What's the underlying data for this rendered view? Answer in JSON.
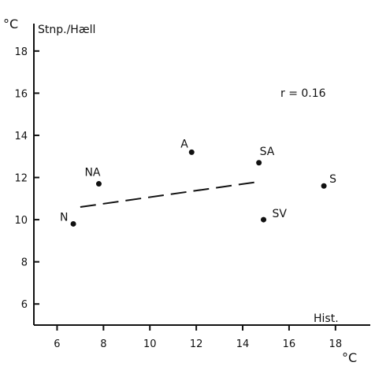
{
  "chart_data": {
    "type": "scatter",
    "ylabel": "Stnp./Hæll",
    "xlabel": "Hist.",
    "y_unit": "°C",
    "x_unit": "°C",
    "xlim": [
      5,
      19.5
    ],
    "ylim": [
      5,
      19.3
    ],
    "x_ticks": [
      6,
      8,
      10,
      12,
      14,
      16,
      18
    ],
    "y_ticks": [
      6,
      8,
      10,
      12,
      14,
      16,
      18
    ],
    "grid": false,
    "annotation": "r = 0.16",
    "points": [
      {
        "label": "N",
        "x": 6.7,
        "y": 9.8
      },
      {
        "label": "NA",
        "x": 7.8,
        "y": 11.7
      },
      {
        "label": "A",
        "x": 11.8,
        "y": 13.2
      },
      {
        "label": "SA",
        "x": 14.7,
        "y": 12.7
      },
      {
        "label": "SV",
        "x": 14.9,
        "y": 10.0
      },
      {
        "label": "S",
        "x": 17.5,
        "y": 11.6
      }
    ],
    "trend_line": {
      "style": "dashed",
      "x": [
        7.0,
        14.7
      ],
      "y": [
        10.6,
        11.8
      ]
    }
  }
}
